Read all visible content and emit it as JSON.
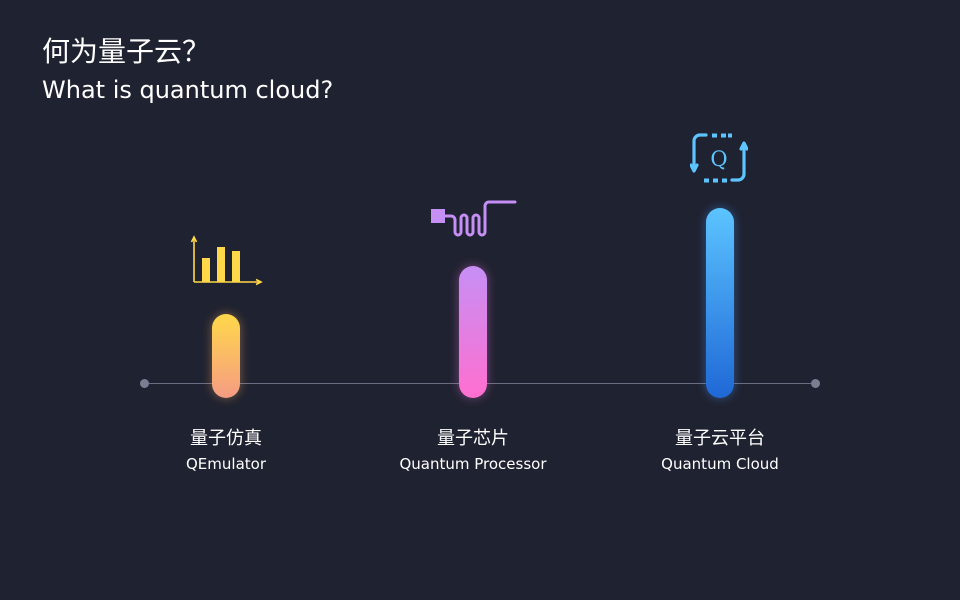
{
  "header": {
    "title_zh": "何为量子云？",
    "title_en": "What is quantum cloud?"
  },
  "items": [
    {
      "title_zh": "量子仿真",
      "title_en": "QEmulator",
      "icon": "bar-chart-icon",
      "color_top": "#ffd84a",
      "color_bottom": "#f59c83"
    },
    {
      "title_zh": "量子芯片",
      "title_en": "Quantum Processor",
      "icon": "quantum-chip-icon",
      "color_top": "#c68ff5",
      "color_bottom": "#ff6fcf"
    },
    {
      "title_zh": "量子云平台",
      "title_en": "Quantum Cloud",
      "icon": "quantum-cloud-icon",
      "icon_text": "Q",
      "color_top": "#5cc4ff",
      "color_bottom": "#1f68d6"
    }
  ],
  "colors": {
    "background": "#1f2230",
    "axis": "#6b6e82"
  }
}
